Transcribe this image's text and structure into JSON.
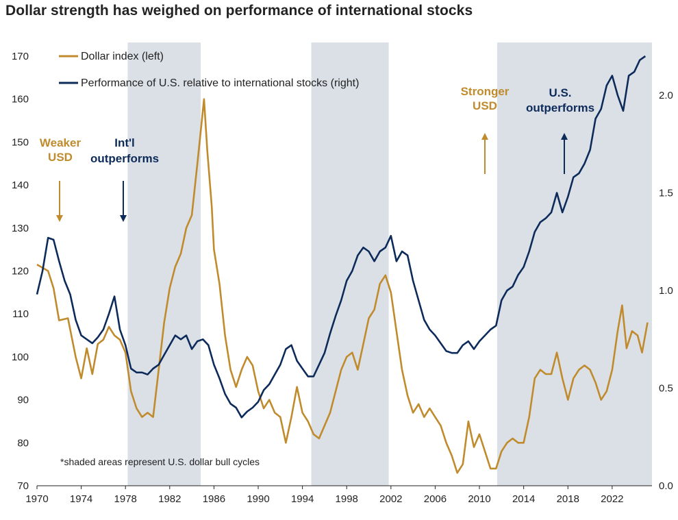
{
  "chart_data": {
    "type": "line",
    "title": "Dollar strength has weighed on performance of international stocks",
    "x_ticks": [
      "1970",
      "1974",
      "1978",
      "1982",
      "1986",
      "1990",
      "1994",
      "1998",
      "2002",
      "2006",
      "2010",
      "2014",
      "2018",
      "2022"
    ],
    "xlim": [
      1970,
      2025.6
    ],
    "y_left": {
      "ticks": [
        "70",
        "80",
        "90",
        "100",
        "110",
        "120",
        "130",
        "140",
        "150",
        "160",
        "170"
      ],
      "ylim": [
        70,
        170
      ]
    },
    "y_right": {
      "ticks": [
        "0.0",
        "0.5",
        "1.0",
        "1.5",
        "2.0"
      ],
      "ylim": [
        0.0,
        2.2
      ]
    },
    "shaded_periods": [
      [
        1978.2,
        1984.8
      ],
      [
        1994.8,
        2001.8
      ],
      [
        2011.6,
        2025.6
      ]
    ],
    "colors": {
      "dollar": "#c08b2c",
      "relative": "#0d2b5a",
      "shade": "#dbdfe6",
      "axis": "#222222"
    },
    "series": [
      {
        "name": "Dollar index (left)",
        "axis": "left",
        "points": [
          [
            1970,
            121.5
          ],
          [
            1971,
            120
          ],
          [
            1971.5,
            116
          ],
          [
            1972,
            108.5
          ],
          [
            1972.8,
            109
          ],
          [
            1973.5,
            100
          ],
          [
            1974,
            95
          ],
          [
            1974.5,
            102
          ],
          [
            1975,
            96
          ],
          [
            1975.5,
            103
          ],
          [
            1976,
            104
          ],
          [
            1976.5,
            107
          ],
          [
            1977,
            105
          ],
          [
            1977.5,
            104
          ],
          [
            1978,
            101
          ],
          [
            1978.5,
            92
          ],
          [
            1979,
            88
          ],
          [
            1979.5,
            86
          ],
          [
            1980,
            87
          ],
          [
            1980.5,
            86
          ],
          [
            1981,
            97
          ],
          [
            1981.5,
            108
          ],
          [
            1982,
            116
          ],
          [
            1982.5,
            121
          ],
          [
            1983,
            124
          ],
          [
            1983.5,
            130
          ],
          [
            1984,
            133
          ],
          [
            1984.5,
            145
          ],
          [
            1984.9,
            155
          ],
          [
            1985.1,
            160
          ],
          [
            1985.4,
            148
          ],
          [
            1985.8,
            135
          ],
          [
            1986,
            125
          ],
          [
            1986.5,
            117
          ],
          [
            1987,
            105
          ],
          [
            1987.5,
            97
          ],
          [
            1988,
            93
          ],
          [
            1988.5,
            97
          ],
          [
            1989,
            100
          ],
          [
            1989.5,
            98
          ],
          [
            1990,
            92
          ],
          [
            1990.5,
            88
          ],
          [
            1991,
            90
          ],
          [
            1991.5,
            87
          ],
          [
            1992,
            86
          ],
          [
            1992.5,
            80
          ],
          [
            1993,
            86
          ],
          [
            1993.5,
            93
          ],
          [
            1994,
            87
          ],
          [
            1994.5,
            85
          ],
          [
            1995,
            82
          ],
          [
            1995.5,
            81
          ],
          [
            1996,
            84
          ],
          [
            1996.5,
            87
          ],
          [
            1997,
            92
          ],
          [
            1997.5,
            97
          ],
          [
            1998,
            100
          ],
          [
            1998.5,
            101
          ],
          [
            1999,
            97
          ],
          [
            1999.5,
            103
          ],
          [
            2000,
            109
          ],
          [
            2000.5,
            111
          ],
          [
            2001,
            117
          ],
          [
            2001.5,
            119
          ],
          [
            2002,
            115
          ],
          [
            2002.5,
            106
          ],
          [
            2003,
            97
          ],
          [
            2003.5,
            91
          ],
          [
            2004,
            87
          ],
          [
            2004.5,
            89
          ],
          [
            2005,
            86
          ],
          [
            2005.5,
            88
          ],
          [
            2006,
            86
          ],
          [
            2006.5,
            84
          ],
          [
            2007,
            80
          ],
          [
            2007.5,
            77
          ],
          [
            2008,
            73
          ],
          [
            2008.5,
            75
          ],
          [
            2009,
            85
          ],
          [
            2009.5,
            79
          ],
          [
            2010,
            82
          ],
          [
            2010.5,
            78
          ],
          [
            2011,
            74
          ],
          [
            2011.5,
            74
          ],
          [
            2012,
            78
          ],
          [
            2012.5,
            80
          ],
          [
            2013,
            81
          ],
          [
            2013.5,
            80
          ],
          [
            2014,
            80
          ],
          [
            2014.5,
            86
          ],
          [
            2015,
            95
          ],
          [
            2015.5,
            97
          ],
          [
            2016,
            96
          ],
          [
            2016.5,
            96
          ],
          [
            2017,
            101
          ],
          [
            2017.5,
            95
          ],
          [
            2018,
            90
          ],
          [
            2018.5,
            95
          ],
          [
            2019,
            97
          ],
          [
            2019.5,
            98
          ],
          [
            2020,
            97
          ],
          [
            2020.5,
            94
          ],
          [
            2021,
            90
          ],
          [
            2021.5,
            92
          ],
          [
            2022,
            97
          ],
          [
            2022.5,
            106
          ],
          [
            2022.9,
            112
          ],
          [
            2023.3,
            102
          ],
          [
            2023.8,
            106
          ],
          [
            2024.3,
            105
          ],
          [
            2024.7,
            101
          ],
          [
            2025.2,
            108
          ]
        ]
      },
      {
        "name": "Performance of U.S. relative to international stocks (right)",
        "axis": "right",
        "points": [
          [
            1970,
            0.98
          ],
          [
            1970.5,
            1.1
          ],
          [
            1971,
            1.27
          ],
          [
            1971.5,
            1.26
          ],
          [
            1972,
            1.15
          ],
          [
            1972.5,
            1.05
          ],
          [
            1973,
            0.98
          ],
          [
            1973.5,
            0.85
          ],
          [
            1974,
            0.77
          ],
          [
            1974.5,
            0.75
          ],
          [
            1975,
            0.73
          ],
          [
            1975.5,
            0.76
          ],
          [
            1976,
            0.8
          ],
          [
            1976.5,
            0.88
          ],
          [
            1977,
            0.97
          ],
          [
            1977.5,
            0.8
          ],
          [
            1978,
            0.72
          ],
          [
            1978.5,
            0.6
          ],
          [
            1979,
            0.58
          ],
          [
            1979.5,
            0.58
          ],
          [
            1980,
            0.57
          ],
          [
            1980.5,
            0.6
          ],
          [
            1981,
            0.62
          ],
          [
            1981.5,
            0.67
          ],
          [
            1982,
            0.72
          ],
          [
            1982.5,
            0.77
          ],
          [
            1983,
            0.75
          ],
          [
            1983.5,
            0.77
          ],
          [
            1984,
            0.7
          ],
          [
            1984.5,
            0.74
          ],
          [
            1985,
            0.75
          ],
          [
            1985.5,
            0.72
          ],
          [
            1986,
            0.62
          ],
          [
            1986.5,
            0.55
          ],
          [
            1987,
            0.47
          ],
          [
            1987.5,
            0.42
          ],
          [
            1988,
            0.4
          ],
          [
            1988.5,
            0.35
          ],
          [
            1989,
            0.38
          ],
          [
            1989.5,
            0.4
          ],
          [
            1990,
            0.43
          ],
          [
            1990.5,
            0.49
          ],
          [
            1991,
            0.52
          ],
          [
            1991.5,
            0.57
          ],
          [
            1992,
            0.62
          ],
          [
            1992.5,
            0.7
          ],
          [
            1993,
            0.72
          ],
          [
            1993.5,
            0.64
          ],
          [
            1994,
            0.6
          ],
          [
            1994.5,
            0.56
          ],
          [
            1995,
            0.56
          ],
          [
            1995.5,
            0.62
          ],
          [
            1996,
            0.68
          ],
          [
            1996.5,
            0.78
          ],
          [
            1997,
            0.87
          ],
          [
            1997.5,
            0.95
          ],
          [
            1998,
            1.05
          ],
          [
            1998.5,
            1.1
          ],
          [
            1999,
            1.18
          ],
          [
            1999.5,
            1.22
          ],
          [
            2000,
            1.2
          ],
          [
            2000.5,
            1.15
          ],
          [
            2001,
            1.2
          ],
          [
            2001.5,
            1.22
          ],
          [
            2002,
            1.28
          ],
          [
            2002.5,
            1.15
          ],
          [
            2003,
            1.2
          ],
          [
            2003.5,
            1.18
          ],
          [
            2004,
            1.05
          ],
          [
            2004.5,
            0.95
          ],
          [
            2005,
            0.85
          ],
          [
            2005.5,
            0.8
          ],
          [
            2006,
            0.77
          ],
          [
            2006.5,
            0.73
          ],
          [
            2007,
            0.69
          ],
          [
            2007.5,
            0.68
          ],
          [
            2008,
            0.68
          ],
          [
            2008.5,
            0.72
          ],
          [
            2009,
            0.74
          ],
          [
            2009.5,
            0.7
          ],
          [
            2010,
            0.74
          ],
          [
            2010.5,
            0.77
          ],
          [
            2011,
            0.8
          ],
          [
            2011.5,
            0.82
          ],
          [
            2012,
            0.95
          ],
          [
            2012.5,
            1.0
          ],
          [
            2013,
            1.02
          ],
          [
            2013.5,
            1.08
          ],
          [
            2014,
            1.12
          ],
          [
            2014.5,
            1.2
          ],
          [
            2015,
            1.3
          ],
          [
            2015.5,
            1.35
          ],
          [
            2016,
            1.37
          ],
          [
            2016.5,
            1.4
          ],
          [
            2017,
            1.5
          ],
          [
            2017.5,
            1.4
          ],
          [
            2018,
            1.48
          ],
          [
            2018.5,
            1.58
          ],
          [
            2019,
            1.6
          ],
          [
            2019.5,
            1.65
          ],
          [
            2020,
            1.72
          ],
          [
            2020.5,
            1.88
          ],
          [
            2021,
            1.93
          ],
          [
            2021.5,
            2.05
          ],
          [
            2022,
            2.1
          ],
          [
            2022.5,
            2.0
          ],
          [
            2023,
            1.92
          ],
          [
            2023.5,
            2.1
          ],
          [
            2024,
            2.12
          ],
          [
            2024.5,
            2.18
          ],
          [
            2025,
            2.2
          ]
        ]
      }
    ]
  },
  "legend": {
    "dollar_label": "Dollar index (left)",
    "relative_label": "Performance of U.S. relative to international stocks (right)"
  },
  "annotations": {
    "weaker_usd": [
      "Weaker",
      "USD"
    ],
    "intl_outperforms": [
      "Int'l",
      "outperforms"
    ],
    "stronger_usd": [
      "Stronger",
      "USD"
    ],
    "us_outperforms": [
      "U.S.",
      "outperforms"
    ],
    "footnote": "*shaded areas represent U.S. dollar bull cycles"
  }
}
